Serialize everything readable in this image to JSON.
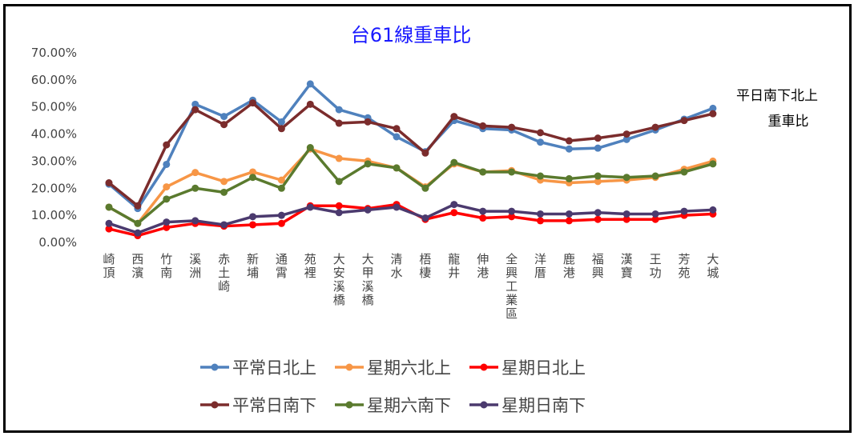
{
  "chart_data": {
    "type": "line",
    "title": "台61線重車比",
    "xlabel": "",
    "ylabel": "",
    "ylim": [
      0,
      70
    ],
    "y_tick_labels": [
      "0.00%",
      "10.00%",
      "20.00%",
      "30.00%",
      "40.00%",
      "50.00%",
      "60.00%",
      "70.00%"
    ],
    "grid": false,
    "legend_position": "bottom",
    "annotation_lines": [
      "平日南下北上",
      "重車比"
    ],
    "categories": [
      "崎頂",
      "西濱",
      "竹南",
      "溪洲",
      "赤土崎",
      "新埔",
      "通霄",
      "苑裡",
      "大安溪橋",
      "大甲溪橋",
      "清水",
      "梧棲",
      "龍井",
      "伸港",
      "全興工業區",
      "洋厝",
      "鹿港",
      "福興",
      "漢寶",
      "王功",
      "芳苑",
      "大城"
    ],
    "series": [
      {
        "name": "平常日北上",
        "color": "#4f81bd",
        "values": [
          21.5,
          12.5,
          28.8,
          51.0,
          46.5,
          52.5,
          44.5,
          58.5,
          49.0,
          46.0,
          39.0,
          33.5,
          45.0,
          42.0,
          41.5,
          37.0,
          34.5,
          34.8,
          38.0,
          41.5,
          45.5,
          49.5
        ]
      },
      {
        "name": "星期六北上",
        "color": "#f79646",
        "values": [
          13.0,
          7.0,
          20.5,
          25.8,
          22.5,
          26.0,
          23.0,
          34.5,
          31.0,
          30.0,
          27.5,
          20.5,
          29.0,
          26.0,
          26.5,
          23.0,
          22.0,
          22.5,
          23.0,
          24.0,
          27.0,
          30.0
        ]
      },
      {
        "name": "星期日北上",
        "color": "#ff0000",
        "values": [
          5.0,
          2.5,
          5.5,
          7.0,
          6.0,
          6.5,
          7.0,
          13.5,
          13.5,
          12.5,
          14.0,
          8.5,
          11.0,
          9.0,
          9.5,
          8.0,
          8.0,
          8.5,
          8.5,
          8.5,
          10.0,
          10.5
        ]
      },
      {
        "name": "平常日南下",
        "color": "#7b2c2c",
        "values": [
          22.0,
          13.5,
          36.0,
          49.0,
          43.5,
          51.5,
          42.0,
          51.0,
          44.0,
          44.5,
          42.0,
          33.0,
          46.5,
          43.0,
          42.5,
          40.5,
          37.5,
          38.5,
          40.0,
          42.5,
          45.0,
          47.5
        ]
      },
      {
        "name": "星期六南下",
        "color": "#5a7a2e",
        "values": [
          13.0,
          7.0,
          16.0,
          20.0,
          18.5,
          24.0,
          20.0,
          35.0,
          22.5,
          29.0,
          27.5,
          20.0,
          29.5,
          26.0,
          26.0,
          24.5,
          23.5,
          24.5,
          24.0,
          24.5,
          26.0,
          29.0
        ]
      },
      {
        "name": "星期日南下",
        "color": "#4b3a6e",
        "values": [
          7.0,
          3.5,
          7.5,
          8.0,
          6.5,
          9.5,
          10.0,
          13.0,
          11.0,
          12.0,
          13.0,
          9.0,
          14.0,
          11.5,
          11.5,
          10.5,
          10.5,
          11.0,
          10.5,
          10.5,
          11.5,
          12.0
        ]
      }
    ]
  }
}
